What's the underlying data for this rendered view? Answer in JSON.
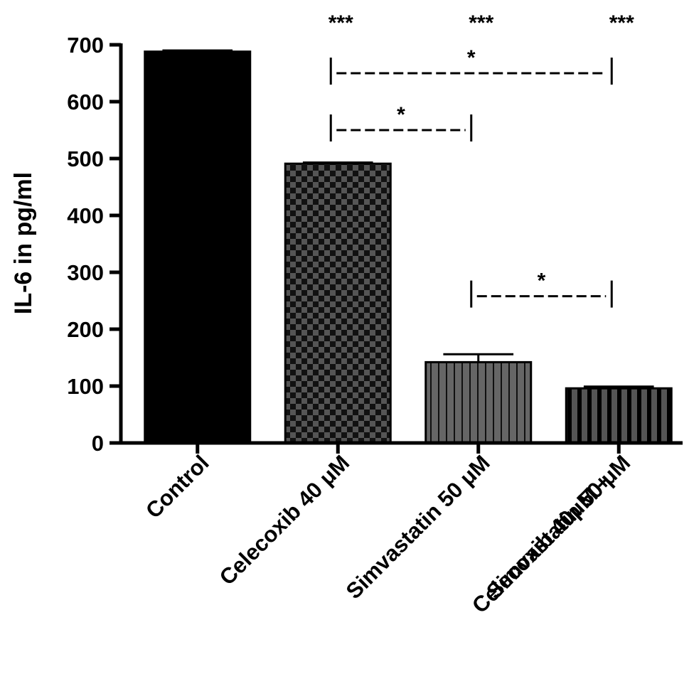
{
  "chart_data": {
    "type": "bar",
    "title": "",
    "xlabel": "",
    "ylabel": "IL-6 in pg/ml",
    "ylim": [
      0,
      700
    ],
    "yticks": [
      0,
      100,
      200,
      300,
      400,
      500,
      600,
      700
    ],
    "grid": false,
    "categories": [
      [
        "Control"
      ],
      [
        "Celecoxib 40 μM"
      ],
      [
        "Simvastatin 50 μM"
      ],
      [
        "Celecoxib 40μM +",
        "Simvastatin 50 μM"
      ]
    ],
    "values": [
      688,
      491,
      142,
      96
    ],
    "error_bars": [
      2,
      2,
      14,
      3
    ],
    "bar_fills": [
      "solid-black",
      "checkerboard",
      "vertical-stripes-fine",
      "vertical-stripes-wide"
    ],
    "significance_vs_control": [
      "",
      "***",
      "***",
      "***"
    ],
    "comparisons": [
      {
        "from": 1,
        "to": 3,
        "label": "*",
        "level": 660
      },
      {
        "from": 1,
        "to": 2,
        "label": "*",
        "level": 560
      },
      {
        "from": 2,
        "to": 3,
        "label": "*",
        "level": 268
      }
    ]
  }
}
